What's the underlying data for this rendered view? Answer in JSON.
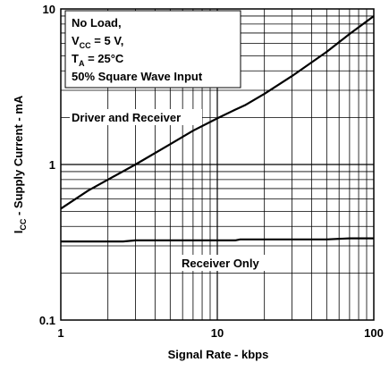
{
  "chart_data": {
    "type": "line",
    "title": "",
    "xlabel": "Signal Rate - kbps",
    "ylabel_main": "I",
    "ylabel_sub": "CC",
    "ylabel_rest": " - Supply Current - mA",
    "x_scale": "log",
    "y_scale": "log",
    "xlim": [
      1,
      100
    ],
    "ylim": [
      0.1,
      10
    ],
    "grid": true,
    "x_ticks": [
      {
        "value": 1,
        "label": "1"
      },
      {
        "value": 10,
        "label": "10"
      },
      {
        "value": 100,
        "label": "100"
      }
    ],
    "y_ticks": [
      {
        "value": 0.1,
        "label": "0.1"
      },
      {
        "value": 1,
        "label": "1"
      },
      {
        "value": 10,
        "label": "10"
      }
    ],
    "series": [
      {
        "name": "Driver and Receiver",
        "x": [
          1,
          1.5,
          2,
          3,
          5,
          7,
          10,
          13,
          15,
          20,
          30,
          50,
          70,
          100
        ],
        "y": [
          0.52,
          0.68,
          0.8,
          1.0,
          1.35,
          1.65,
          1.98,
          2.25,
          2.4,
          2.85,
          3.7,
          5.3,
          6.9,
          9.0
        ]
      },
      {
        "name": "Receiver Only",
        "x": [
          1,
          2.5,
          3,
          10,
          13,
          14,
          50,
          70,
          100
        ],
        "y": [
          0.32,
          0.32,
          0.325,
          0.325,
          0.325,
          0.33,
          0.33,
          0.335,
          0.335
        ]
      }
    ],
    "annotation": {
      "line1": "No Load,",
      "line2_main": "V",
      "line2_sub": "CC",
      "line2_rest": " = 5 V,",
      "line3_main": "T",
      "line3_sub": "A",
      "line3_rest": " = 25°C",
      "line4": "50% Square Wave Input"
    }
  }
}
